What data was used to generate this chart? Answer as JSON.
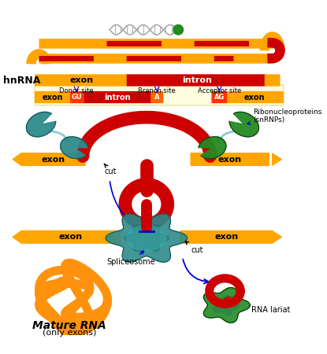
{
  "bg_color": "#ffffff",
  "exon_color": "#FFA500",
  "intron_color": "#CC0000",
  "teal_color": "#2E8B8B",
  "green_color": "#228B22",
  "mature_color": "#FF8C00",
  "lariat_red": "#CC0000",
  "arrow_blue": "#0000CC",
  "arrow_teal": "#88CCCC",
  "hnrna_label": "hnRNA",
  "exon_label": "exon",
  "intron_label": "intron",
  "donor_label": "Donor site",
  "branch_label": "Branch site",
  "acceptor_label": "Acceptor site",
  "gu_label": "GU",
  "a_label": "A",
  "ag_label": "AG",
  "ribonucleoprotein_label": "Ribonucleoproteins\n(snRNPs)",
  "cut_label": "cut",
  "spliceosome_label": "Spliceosome",
  "mature_rna_label": "Mature RNA",
  "only_exons_label": "(only exons)",
  "rna_lariat_label": "RNA lariat"
}
